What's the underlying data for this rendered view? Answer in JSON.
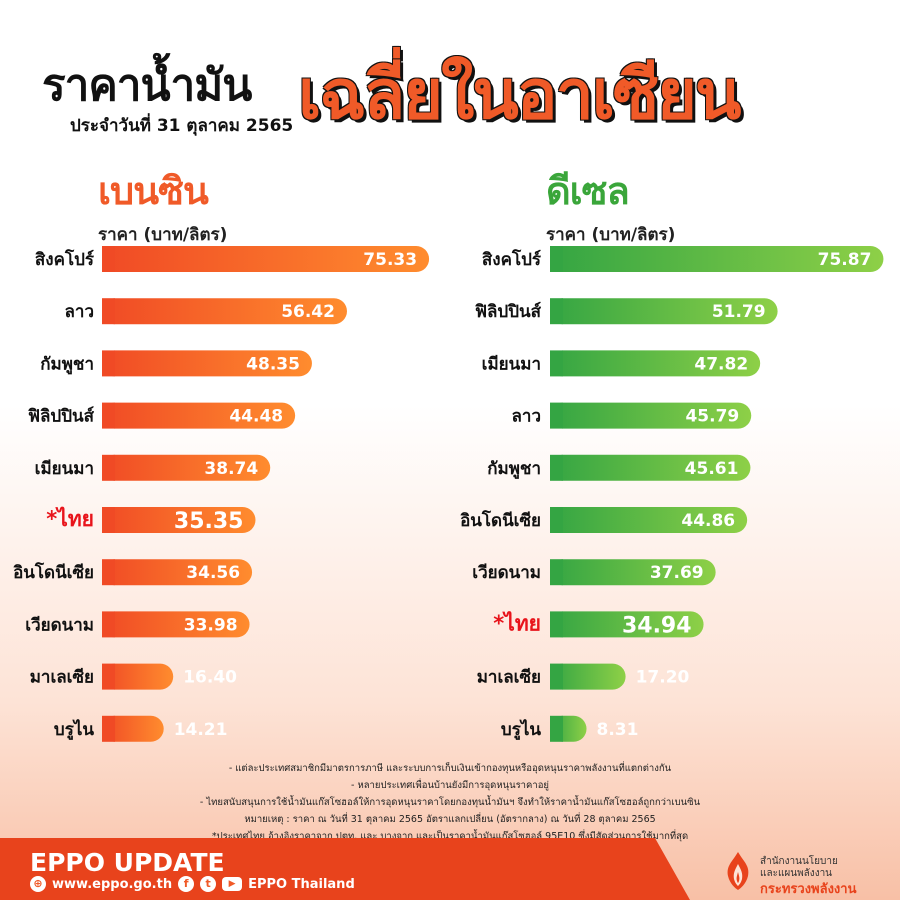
{
  "header": {
    "title_main": "ราคาน้ำมัน",
    "title_accent": "เฉลี่ยในอาเซียน",
    "date": "ประจำวันที่ 31 ตุลาคม 2565"
  },
  "colors": {
    "gasoline_start": "#f04a25",
    "gasoline_end": "#ff8c2e",
    "diesel_start": "#34a543",
    "diesel_end": "#8ed047",
    "highlight": "#e8141b",
    "footer": "#e8431c"
  },
  "chart_data": [
    {
      "type": "bar",
      "orientation": "horizontal",
      "title": "เบนซิน",
      "xlabel": "ราคา (บาท/ลิตร)",
      "categories": [
        "สิงคโปร์",
        "ลาว",
        "กัมพูชา",
        "ฟิลิปปินส์",
        "เมียนมา",
        "*ไทย",
        "อินโดนีเซีย",
        "เวียดนาม",
        "มาเลเซีย",
        "บรูไน"
      ],
      "values": [
        75.33,
        56.42,
        48.35,
        44.48,
        38.74,
        35.35,
        34.56,
        33.98,
        16.4,
        14.21
      ],
      "value_labels": [
        "75.33",
        "56.42",
        "48.35",
        "44.48",
        "38.74",
        "35.35",
        "34.56",
        "33.98",
        "16.40",
        "14.21"
      ],
      "highlight_category": "*ไทย",
      "xlim": [
        0,
        76
      ]
    },
    {
      "type": "bar",
      "orientation": "horizontal",
      "title": "ดีเซล",
      "xlabel": "ราคา (บาท/ลิตร)",
      "categories": [
        "สิงคโปร์",
        "ฟิลิปปินส์",
        "เมียนมา",
        "ลาว",
        "กัมพูชา",
        "อินโดนีเซีย",
        "เวียดนาม",
        "*ไทย",
        "มาเลเซีย",
        "บรูไน"
      ],
      "values": [
        75.87,
        51.79,
        47.82,
        45.79,
        45.61,
        44.86,
        37.69,
        34.94,
        17.2,
        8.31
      ],
      "value_labels": [
        "75.87",
        "51.79",
        "47.82",
        "45.79",
        "45.61",
        "44.86",
        "37.69",
        "34.94",
        "17.20",
        "8.31"
      ],
      "highlight_category": "*ไทย",
      "xlim": [
        0,
        76
      ]
    }
  ],
  "notes": [
    "- แต่ละประเทศสมาชิกมีมาตรการภาษี และระบบการเก็บเงินเข้ากองทุนหรืออุดหนุนราคาพลังงานที่แตกต่างกัน",
    "- หลายประเทศเพื่อนบ้านยังมีการอุดหนุนราคาอยู่",
    "- ไทยสนับสนุนการใช้น้ำมันแก๊สโซฮอล์ให้การอุดหนุนราคาโดยกองทุนน้ำมันฯ จึงทำให้ราคาน้ำมันแก๊สโซฮอล์ถูกกว่าเบนซิน",
    "หมายเหตุ :  ราคา ณ วันที่ 31 ตุลาคม 2565 อัตราแลกเปลี่ยน (อัตรากลาง) ณ วันที่ 28 ตุลาคม 2565",
    "*ประเทศไทย อ้างอิงราคาจาก ปตท. และ บางจาก และเป็นราคาน้ำมันแก๊สโซฮอล์ 95E10 ซึ่งมีสัดส่วนการใช้มากที่สุด"
  ],
  "footer": {
    "title": "EPPO UPDATE",
    "website": "www.eppo.go.th",
    "facebook_icon": "facebook-icon",
    "twitter_icon": "twitter-icon",
    "youtube_icon": "youtube-icon",
    "social_name": "EPPO Thailand",
    "org_line1": "สำนักงานนโยบาย",
    "org_line2": "และแผนพลังงาน",
    "org_line3": "กระทรวงพลังงาน"
  }
}
